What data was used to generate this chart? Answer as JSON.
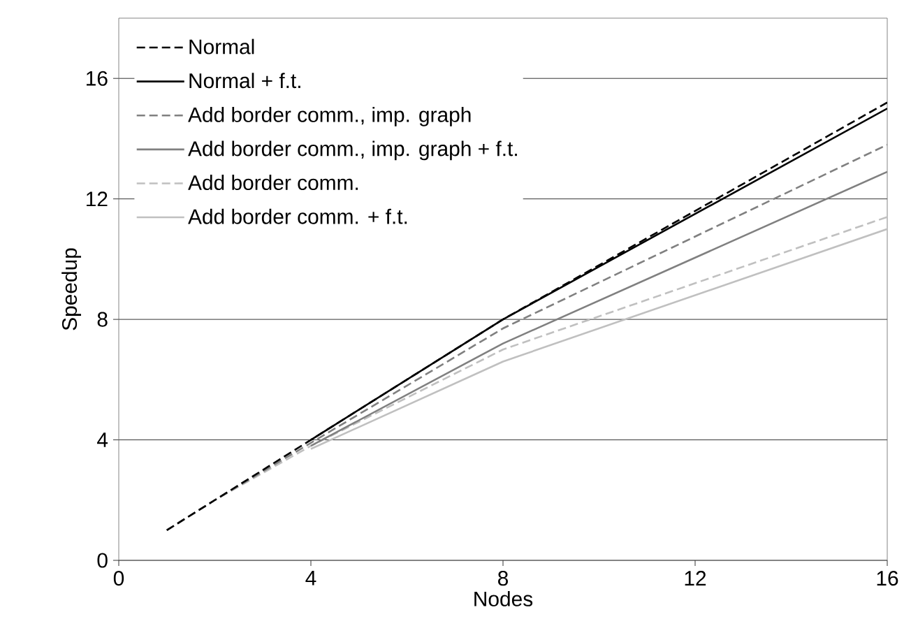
{
  "chart_data": {
    "type": "line",
    "xlabel": "Nodes",
    "ylabel": "Speedup",
    "xlim": [
      0,
      16
    ],
    "xticks": [
      0,
      4,
      8,
      12,
      16
    ],
    "ylim": [
      0,
      18
    ],
    "yticks": [
      0,
      4,
      8,
      12,
      16
    ],
    "grid": "y",
    "legend": "top left",
    "marker": "none",
    "series": [
      {
        "name": "Normal",
        "color": "#000000",
        "line_style": "dashed",
        "x": [
          1,
          2,
          4,
          8,
          16
        ],
        "values": [
          1,
          2,
          4,
          8,
          15.2
        ]
      },
      {
        "name": "Normal + f.t.",
        "color": "#000000",
        "line_style": "solid",
        "x": [
          4,
          8,
          16
        ],
        "values": [
          4,
          8,
          15.0
        ]
      },
      {
        "name": "Add border comm., imp. graph",
        "color": "#808080",
        "line_style": "dashed",
        "x": [
          1,
          2,
          4,
          8,
          16
        ],
        "values": [
          1,
          2,
          3.9,
          7.7,
          13.8
        ]
      },
      {
        "name": "Add border comm., imp. graph + f.t.",
        "color": "#808080",
        "line_style": "solid",
        "x": [
          4,
          8,
          16
        ],
        "values": [
          3.8,
          7.2,
          12.9
        ]
      },
      {
        "name": "Add border comm.",
        "color": "#c0c0c0",
        "line_style": "dashed",
        "x": [
          1,
          2,
          4,
          8,
          16
        ],
        "values": [
          1,
          2,
          3.8,
          7.0,
          11.4
        ]
      },
      {
        "name": "Add border comm. + f.t.",
        "color": "#c0c0c0",
        "line_style": "solid",
        "x": [
          4,
          8,
          16
        ],
        "values": [
          3.7,
          6.6,
          11.0
        ]
      }
    ]
  }
}
